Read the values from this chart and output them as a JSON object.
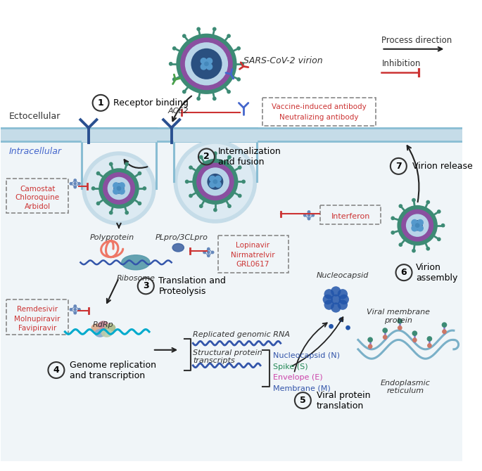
{
  "bg_color": "#f0f5f8",
  "white": "#ffffff",
  "membrane_color": "#89bdd3",
  "membrane_fill": "#c5dce8",
  "virus_green": "#3d8b75",
  "virus_purple": "#8a4fa0",
  "virus_light": "#b8d4e8",
  "virus_dark": "#2a5080",
  "spike_green": "#3d8b75",
  "antibody_green": "#4aa04a",
  "antibody_blue": "#4466cc",
  "antibody_red": "#cc3333",
  "inhibit_red": "#cc3333",
  "arrow_dark": "#222222",
  "text_dark": "#222222",
  "drug_red": "#cc3333",
  "blue_label": "#4466cc",
  "step_circle": "#333333",
  "nuc_blue": "#2255aa",
  "teal_rna": "#00aacc",
  "dark_blue_rna": "#3355aa",
  "er_blue": "#7ab0c8",
  "pink_protein": "#ee7766",
  "ribosome_teal": "#5599aa",
  "rdrp_colors": [
    "#ddaa88",
    "#cc8899",
    "#aabb88",
    "#88aacc",
    "#bbccaa"
  ],
  "virion_label": "SARS-CoV-2 virion",
  "ecto_label": "Ectocellular",
  "intra_label": "Intracellular",
  "ace2_label": "ACE2",
  "step1": "Receptor binding",
  "step2": "Internalization\nand fusion",
  "step3": "Translation and\nProteolysis",
  "step4": "Genome replication\nand transcription",
  "step5": "Viral protein\ntranslation",
  "step6": "Virion\nassembly",
  "step7": "Virion release",
  "vax1": "Vaccine-induced antibody",
  "vax2": "Neutralizing antibody",
  "cam1": "Camostat",
  "cam2": "Chloroquine",
  "cam3": "Arbidol",
  "lop1": "Lopinavir",
  "lop2": "Nirmatrelvir",
  "lop3": "GRL0617",
  "rem1": "Remdesivir",
  "rem2": "Molnupiravir",
  "rem3": "Favipiravir",
  "interferon": "Interferon",
  "proc_dir": "Process direction",
  "inhibition": "Inhibition",
  "polyprotein": "Polyprotein",
  "plpro": "PLpro/3CLpro",
  "ribosome": "Ribosome",
  "rdrp": "RdRp",
  "nucleocapsid": "Nucleocapsid",
  "viral_mem": "Viral membrane\nprotein",
  "er": "Endoplasmic\nreticulum",
  "rep_rna": "Replicated genomic RNA",
  "struct": "Structural protein\ntranscripts",
  "N_lbl": "Nucleocapsid (N)",
  "S_lbl": "Spike (S)",
  "E_lbl": "Envelope (E)",
  "M_lbl": "Membrane (M)",
  "N_col": "#3355aa",
  "S_col": "#228855",
  "E_col": "#cc44aa",
  "M_col": "#3355aa"
}
